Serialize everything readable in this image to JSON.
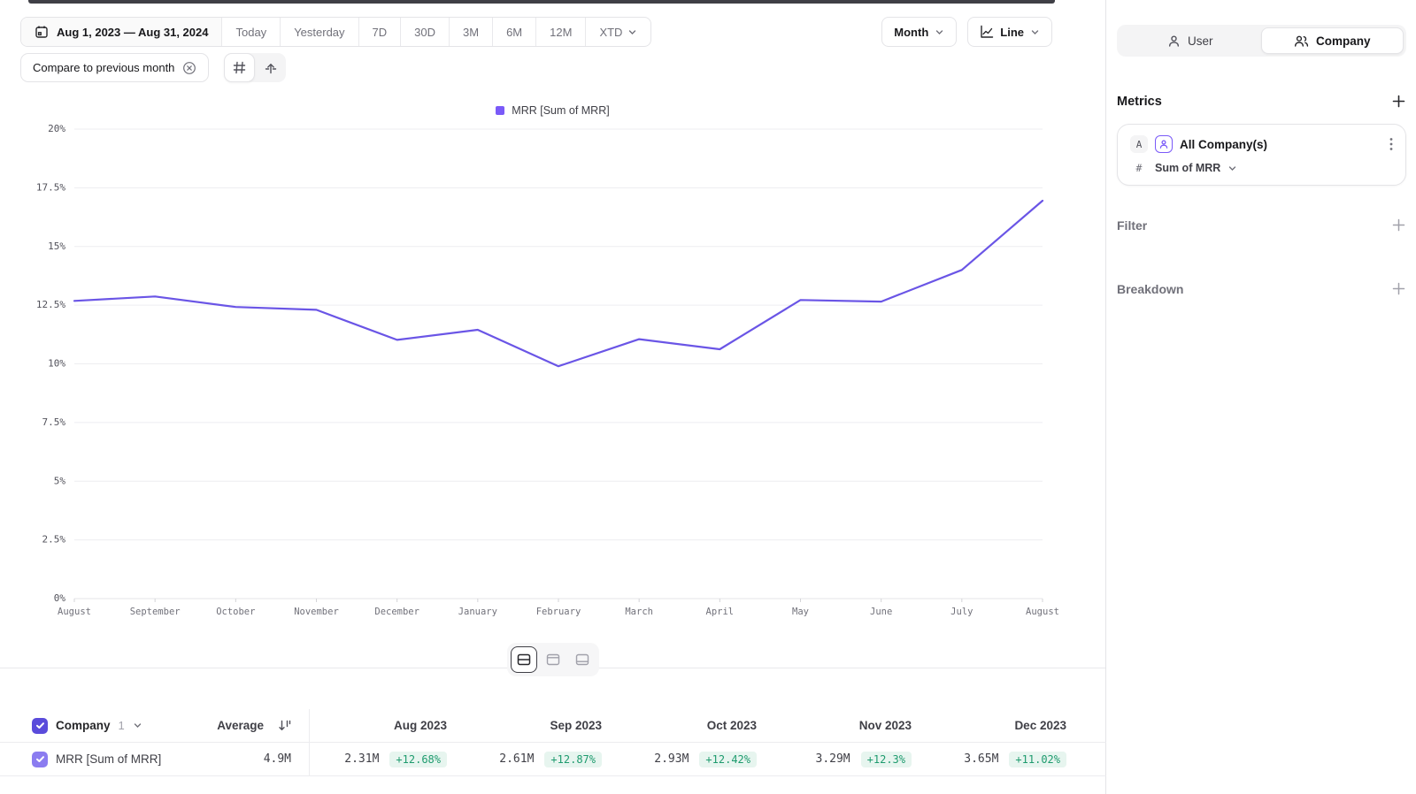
{
  "toolbar": {
    "date_range": "Aug 1, 2023 — Aug 31, 2024",
    "presets": [
      "Today",
      "Yesterday",
      "7D",
      "30D",
      "3M",
      "6M",
      "12M"
    ],
    "xtd_label": "XTD",
    "granularity_label": "Month",
    "chart_type_label": "Line",
    "compare_label": "Compare to previous month"
  },
  "legend": {
    "label": "MRR [Sum of MRR]"
  },
  "chart_data": {
    "type": "line",
    "title": "MRR [Sum of MRR]",
    "x": [
      "August",
      "September",
      "October",
      "November",
      "December",
      "January",
      "February",
      "March",
      "April",
      "May",
      "June",
      "July",
      "August"
    ],
    "values": [
      12.68,
      12.87,
      12.42,
      12.3,
      11.02,
      11.45,
      9.9,
      11.05,
      10.62,
      12.72,
      12.65,
      14.0,
      16.95
    ],
    "unit": "%",
    "ylim": [
      0,
      20
    ],
    "yticks": [
      0,
      2.5,
      5,
      7.5,
      10,
      12.5,
      15,
      17.5,
      20
    ],
    "ytick_labels": [
      "0%",
      "2.5%",
      "5%",
      "7.5%",
      "10%",
      "12.5%",
      "15%",
      "17.5%",
      "20%"
    ],
    "line_color": "#6a55e6",
    "grid": true,
    "legend_position": "top"
  },
  "table": {
    "group_label": "Company",
    "group_count": "1",
    "average_label": "Average",
    "columns": [
      "Aug 2023",
      "Sep 2023",
      "Oct 2023",
      "Nov 2023",
      "Dec 2023"
    ],
    "rows": [
      {
        "name": "MRR [Sum of MRR]",
        "average": "4.9M",
        "cells": [
          {
            "value": "2.31M",
            "delta": "+12.68%"
          },
          {
            "value": "2.61M",
            "delta": "+12.87%"
          },
          {
            "value": "2.93M",
            "delta": "+12.42%"
          },
          {
            "value": "3.29M",
            "delta": "+12.3%"
          },
          {
            "value": "3.65M",
            "delta": "+11.02%"
          }
        ]
      }
    ]
  },
  "sidebar": {
    "toggle": {
      "user": "User",
      "company": "Company"
    },
    "metrics_title": "Metrics",
    "metric_card": {
      "badge": "A",
      "title": "All Company(s)",
      "field_prefix": "#",
      "field": "Sum of MRR"
    },
    "filter_title": "Filter",
    "breakdown_title": "Breakdown"
  },
  "colors": {
    "accent_checkbox": "#5a4bdb",
    "row_checkbox": "#8b7cf0",
    "line": "#6a55e6",
    "legend_swatch": "#7a5af8",
    "positive_text": "#1e9b6e",
    "positive_bg": "#e7f5ef"
  }
}
